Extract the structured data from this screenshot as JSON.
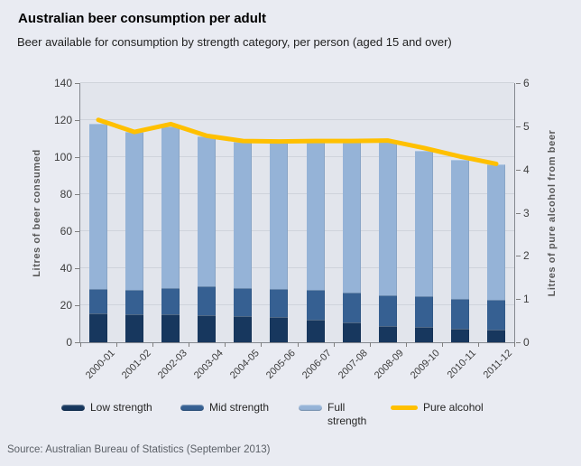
{
  "title": "Australian beer consumption per adult",
  "subtitle": "Beer available for consumption by strength category, per person (aged 15 and over)",
  "source": "Source: Australian Bureau of Statistics (September 2013)",
  "colors": {
    "background": "#e9ebf2",
    "plot_background": "#e2e5ec",
    "gridline": "#cfd3db",
    "axis": "#7f7f7f",
    "low_strength": "#17375e",
    "mid_strength": "#366092",
    "full_strength": "#95b3d7",
    "pure_alcohol": "#ffc000"
  },
  "chart_data": {
    "type": "bar",
    "subtype": "stacked-bars-with-line",
    "title": "Australian beer consumption per adult",
    "subtitle": "Beer available for consumption by strength category, per person (aged 15 and over)",
    "categories": [
      "2000-01",
      "2001-02",
      "2002-03",
      "2003-04",
      "2004-05",
      "2005-06",
      "2006-07",
      "2007-08",
      "2008-09",
      "2009-10",
      "2010-11",
      "2011-12"
    ],
    "series": [
      {
        "name": "Low strength",
        "type": "bar",
        "color": "#17375e",
        "values": [
          15.4,
          15.0,
          15.0,
          14.5,
          14.0,
          13.5,
          12.4,
          10.5,
          9.0,
          8.4,
          7.5,
          6.9
        ]
      },
      {
        "name": "Mid strength",
        "type": "bar",
        "color": "#366092",
        "values": [
          13.6,
          13.5,
          14.5,
          15.9,
          15.5,
          15.5,
          16.0,
          16.4,
          16.5,
          16.5,
          16.0,
          15.9
        ]
      },
      {
        "name": "Full strength",
        "type": "bar",
        "color": "#95b3d7",
        "values": [
          89.0,
          85.0,
          87.0,
          80.6,
          79.0,
          79.5,
          80.1,
          81.5,
          83.0,
          78.6,
          75.0,
          73.5
        ]
      },
      {
        "name": "Pure alcohol",
        "type": "line",
        "axis": "right",
        "color": "#ffc000",
        "values": [
          5.15,
          4.87,
          5.05,
          4.78,
          4.66,
          4.65,
          4.66,
          4.66,
          4.67,
          4.5,
          4.3,
          4.13
        ]
      }
    ],
    "left_axis": {
      "label": "Litres of beer consumed",
      "min": 0,
      "max": 140,
      "step": 20
    },
    "right_axis": {
      "label": "Litres of pure alcohol from beer",
      "min": 0,
      "max": 6,
      "step": 1
    },
    "grid": true,
    "legend_position": "bottom"
  }
}
